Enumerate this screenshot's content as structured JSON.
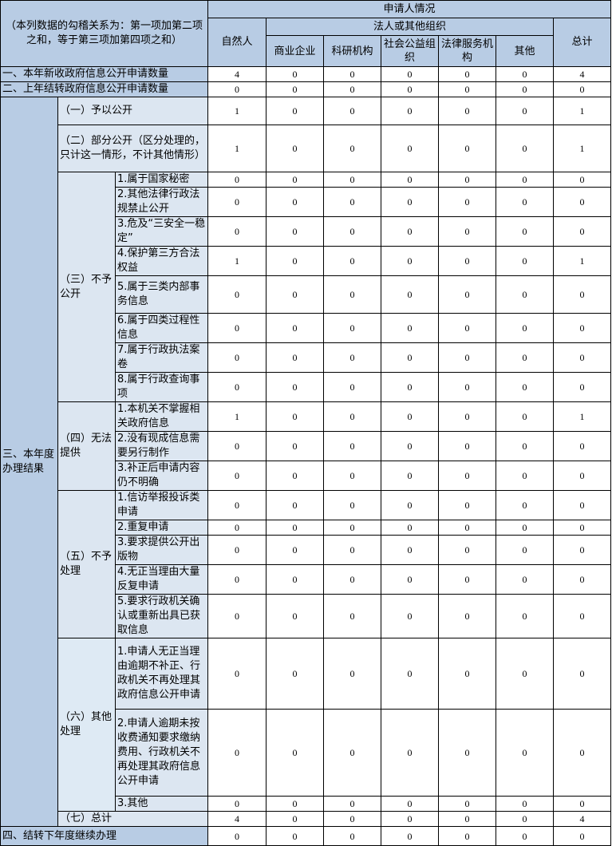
{
  "header": {
    "note": "（本列数据的勾稽关系为：第一项加第二项之和，等于第三项加第四项之和）",
    "applicant": "申请人情况",
    "natural_person": "自然人",
    "legal_org": "法人或其他组织",
    "org_cols": [
      "商业企业",
      "科研机构",
      "社会公益组织",
      "法律服务机构",
      "其他"
    ],
    "total": "总计"
  },
  "row_new": {
    "label": "一、本年新收政府信息公开申请数量",
    "values": [
      4,
      0,
      0,
      0,
      0,
      0,
      4
    ]
  },
  "row_carry": {
    "label": "二、上年结转政府信息公开申请数量",
    "values": [
      0,
      0,
      0,
      0,
      0,
      0,
      0
    ]
  },
  "results": {
    "label": "三、本年度办理结果",
    "groups": [
      {
        "label": "（一）予以公开",
        "values": [
          1,
          0,
          0,
          0,
          0,
          0,
          1
        ]
      },
      {
        "label": "（二）部分公开（区分处理的，只计这一情形，不计其他情形）",
        "values": [
          1,
          0,
          0,
          0,
          0,
          0,
          1
        ]
      },
      {
        "label": "（三）不予公开",
        "items": [
          {
            "label": "1.属于国家秘密",
            "values": [
              0,
              0,
              0,
              0,
              0,
              0,
              0
            ]
          },
          {
            "label": "2.其他法律行政法规禁止公开",
            "values": [
              0,
              0,
              0,
              0,
              0,
              0,
              0
            ]
          },
          {
            "label": "3.危及“三安全一稳定”",
            "values": [
              0,
              0,
              0,
              0,
              0,
              0,
              0
            ]
          },
          {
            "label": "4.保护第三方合法权益",
            "values": [
              1,
              0,
              0,
              0,
              0,
              0,
              1
            ]
          },
          {
            "label": "5.属于三类内部事务信息",
            "values": [
              0,
              0,
              0,
              0,
              0,
              0,
              0
            ]
          },
          {
            "label": "6.属于四类过程性信息",
            "values": [
              0,
              0,
              0,
              0,
              0,
              0,
              0
            ]
          },
          {
            "label": "7.属于行政执法案卷",
            "values": [
              0,
              0,
              0,
              0,
              0,
              0,
              0
            ]
          },
          {
            "label": "8.属于行政查询事项",
            "values": [
              0,
              0,
              0,
              0,
              0,
              0,
              0
            ]
          }
        ]
      },
      {
        "label": "（四）无法提供",
        "items": [
          {
            "label": "1.本机关不掌握相关政府信息",
            "values": [
              1,
              0,
              0,
              0,
              0,
              0,
              1
            ]
          },
          {
            "label": "2.没有现成信息需要另行制作",
            "values": [
              0,
              0,
              0,
              0,
              0,
              0,
              0
            ]
          },
          {
            "label": "3.补正后申请内容仍不明确",
            "values": [
              0,
              0,
              0,
              0,
              0,
              0,
              0
            ]
          }
        ]
      },
      {
        "label": "（五）不予处理",
        "items": [
          {
            "label": "1.信访举报投诉类申请",
            "values": [
              0,
              0,
              0,
              0,
              0,
              0,
              0
            ]
          },
          {
            "label": "2.重复申请",
            "values": [
              0,
              0,
              0,
              0,
              0,
              0,
              0
            ]
          },
          {
            "label": "3.要求提供公开出版物",
            "values": [
              0,
              0,
              0,
              0,
              0,
              0,
              0
            ]
          },
          {
            "label": "4.无正当理由大量反复申请",
            "values": [
              0,
              0,
              0,
              0,
              0,
              0,
              0
            ]
          },
          {
            "label": "5.要求行政机关确认或重新出具已获取信息",
            "values": [
              0,
              0,
              0,
              0,
              0,
              0,
              0
            ]
          }
        ]
      },
      {
        "label": "（六）其他处理",
        "items": [
          {
            "label": "1.申请人无正当理由逾期不补正、行政机关不再处理其政府信息公开申请",
            "values": [
              0,
              0,
              0,
              0,
              0,
              0,
              0
            ]
          },
          {
            "label": "2.申请人逾期未按收费通知要求缴纳费用、行政机关不再处理其政府信息公开申请",
            "values": [
              0,
              0,
              0,
              0,
              0,
              0,
              0
            ]
          },
          {
            "label": "3.其他",
            "values": [
              0,
              0,
              0,
              0,
              0,
              0,
              0
            ]
          }
        ]
      },
      {
        "label": "（七）总计",
        "values": [
          4,
          0,
          0,
          0,
          0,
          0,
          4
        ]
      }
    ]
  },
  "row_next": {
    "label": "四、结转下年度继续办理",
    "values": [
      0,
      0,
      0,
      0,
      0,
      0,
      0
    ]
  },
  "colors": {
    "header_bg": "#b8cce4",
    "sub_bg": "#dce6f1"
  }
}
